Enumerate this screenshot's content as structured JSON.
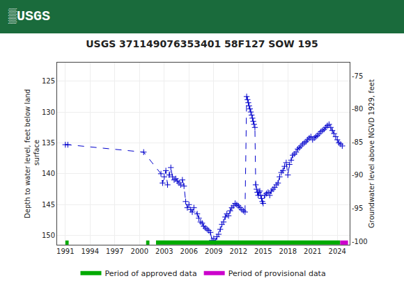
{
  "chart_data": {
    "type": "line",
    "title": "USGS 371149076353401 58F127 SOW 195",
    "annotations": [
      {
        "text": "▒USGS",
        "color": "#1a6b3c"
      }
    ],
    "ylabel": "Depth to water level, feet below land\n surface",
    "y2label": "Groundwater level above NGVD 1929, feet",
    "x": [
      1991.0,
      1991.3,
      2000.5,
      2002.6,
      2002.8,
      2003.0,
      2003.2,
      2003.4,
      2003.6,
      2003.8,
      2004.0,
      2004.2,
      2004.4,
      2004.6,
      2004.8,
      2005.0,
      2005.2,
      2005.4,
      2005.6,
      2005.8,
      2006.0,
      2006.2,
      2006.4,
      2006.6,
      2007.0,
      2007.2,
      2007.4,
      2007.6,
      2007.8,
      2008.0,
      2008.2,
      2008.4,
      2008.6,
      2008.8,
      2009.0,
      2009.2,
      2009.4,
      2009.6,
      2009.8,
      2010.0,
      2010.2,
      2010.4,
      2010.6,
      2010.8,
      2011.0,
      2011.2,
      2011.4,
      2011.6,
      2011.8,
      2012.0,
      2012.2,
      2012.4,
      2012.6,
      2012.8,
      2013.0,
      2013.1,
      2013.2,
      2013.3,
      2013.4,
      2013.5,
      2013.6,
      2013.7,
      2013.8,
      2013.9,
      2014.0,
      2014.1,
      2014.2,
      2014.3,
      2014.4,
      2014.5,
      2014.6,
      2014.7,
      2014.8,
      2014.9,
      2015.0,
      2015.2,
      2015.4,
      2015.6,
      2015.8,
      2016.0,
      2016.2,
      2016.4,
      2016.6,
      2016.8,
      2017.0,
      2017.2,
      2017.4,
      2017.6,
      2017.8,
      2018.0,
      2018.2,
      2018.4,
      2018.6,
      2018.8,
      2019.0,
      2019.2,
      2019.4,
      2019.6,
      2019.8,
      2020.0,
      2020.2,
      2020.4,
      2020.6,
      2020.8,
      2021.0,
      2021.2,
      2021.4,
      2021.6,
      2021.8,
      2022.0,
      2022.2,
      2022.4,
      2022.6,
      2022.8,
      2023.0,
      2023.2,
      2023.4,
      2023.6,
      2023.8,
      2024.0,
      2024.2,
      2024.4,
      2024.6
    ],
    "series": [
      {
        "color": "#0000cc",
        "marker": "+",
        "line_style": "dashed",
        "values": [
          135.3,
          135.3,
          136.5,
          140.0,
          141.5,
          140.5,
          139.5,
          141.8,
          140.2,
          139.0,
          140.5,
          141.0,
          140.8,
          141.2,
          141.5,
          141.8,
          141.0,
          142.0,
          144.5,
          145.5,
          145.0,
          145.8,
          146.2,
          145.5,
          146.5,
          147.2,
          147.8,
          148.0,
          148.5,
          148.8,
          149.0,
          149.2,
          149.5,
          150.8,
          150.5,
          151.0,
          150.2,
          149.8,
          149.0,
          148.2,
          147.8,
          147.0,
          146.5,
          146.8,
          146.0,
          145.5,
          145.2,
          144.8,
          145.0,
          145.2,
          145.5,
          145.8,
          146.0,
          146.2,
          127.5,
          128.0,
          128.5,
          129.0,
          129.5,
          130.0,
          130.5,
          131.0,
          131.5,
          132.0,
          132.5,
          141.8,
          142.5,
          143.0,
          143.5,
          143.0,
          142.8,
          143.5,
          144.0,
          144.5,
          144.8,
          143.5,
          143.2,
          143.0,
          143.5,
          142.8,
          142.5,
          142.2,
          141.8,
          141.5,
          140.5,
          139.8,
          139.5,
          138.8,
          138.2,
          140.2,
          138.5,
          137.8,
          137.0,
          136.8,
          136.5,
          136.0,
          135.8,
          135.5,
          135.2,
          135.0,
          134.8,
          134.5,
          134.2,
          134.0,
          134.5,
          134.2,
          134.0,
          133.8,
          133.5,
          133.2,
          133.0,
          132.8,
          132.5,
          132.2,
          132.0,
          132.5,
          133.0,
          133.5,
          134.0,
          134.5,
          135.0,
          135.2,
          135.5
        ]
      }
    ],
    "periods": [
      {
        "name": "Period of approved data",
        "color": "#00aa00",
        "starts": [
          1991.0,
          2000.8,
          2002.0
        ],
        "ends": [
          1991.4,
          2001.2,
          2024.35
        ]
      },
      {
        "name": "Period of provisional data",
        "color": "#cc00cc",
        "starts": [
          2024.35
        ],
        "ends": [
          2025.3
        ]
      }
    ],
    "xlim": [
      1990.0,
      2025.5
    ],
    "xticks": [
      1991,
      1994,
      1997,
      2000,
      2003,
      2006,
      2009,
      2012,
      2015,
      2018,
      2021,
      2024
    ],
    "ylim": [
      151.5,
      122.0
    ],
    "yticks": [
      125,
      130,
      135,
      140,
      145,
      150
    ],
    "y2lim": [
      -100.5,
      -73.0
    ],
    "y2ticks": [
      -75,
      -80,
      -85,
      -90,
      -95,
      -100
    ],
    "grid": true,
    "legend": "bottom"
  }
}
